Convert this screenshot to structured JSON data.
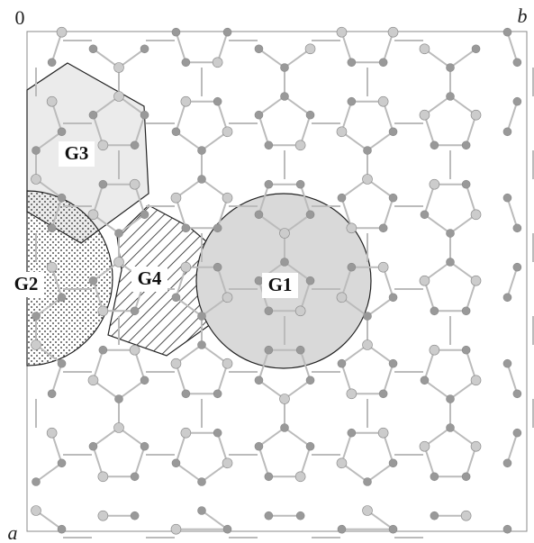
{
  "axes": {
    "origin": "0",
    "b": "b",
    "a": "a"
  },
  "regions": [
    {
      "label": "G1"
    },
    {
      "label": "G2"
    },
    {
      "label": "G3"
    },
    {
      "label": "G4"
    }
  ]
}
